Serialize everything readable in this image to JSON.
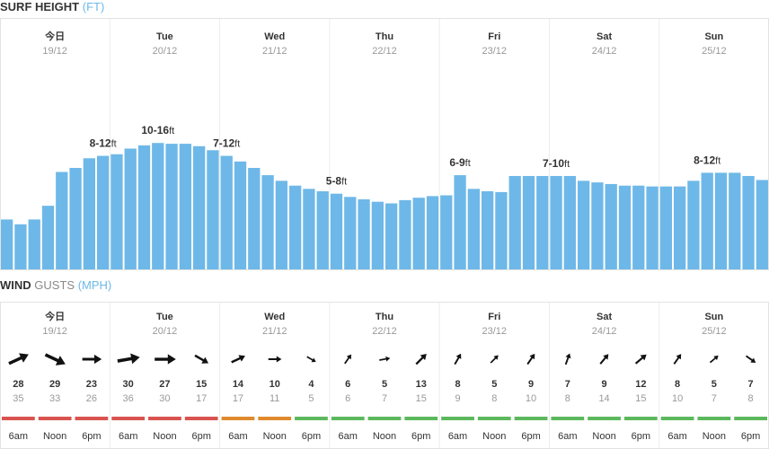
{
  "surf": {
    "title": "SURF HEIGHT",
    "unit": "(FT)",
    "ylim": [
      0,
      31
    ],
    "color": "#6db8e8",
    "days": [
      {
        "day": "今日",
        "date": "19/12",
        "range": "8-12",
        "unit": "ft"
      },
      {
        "day": "Tue",
        "date": "20/12",
        "range": "10-16",
        "unit": "ft"
      },
      {
        "day": "Wed",
        "date": "21/12",
        "range": "7-12",
        "unit": "ft"
      },
      {
        "day": "Thu",
        "date": "22/12",
        "range": "5-8",
        "unit": "ft"
      },
      {
        "day": "Fri",
        "date": "23/12",
        "range": "6-9",
        "unit": "ft"
      },
      {
        "day": "Sat",
        "date": "24/12",
        "range": "7-10",
        "unit": "ft"
      },
      {
        "day": "Sun",
        "date": "25/12",
        "range": "8-12",
        "unit": "ft"
      }
    ],
    "heights": [
      6.2,
      5.6,
      6.2,
      7.9,
      12.1,
      12.6,
      13.8,
      14.1,
      14.3,
      15,
      15.4,
      15.7,
      15.6,
      15.6,
      15.3,
      14.8,
      14.1,
      13.4,
      12.6,
      11.7,
      11,
      10.4,
      10,
      9.7,
      9.4,
      9,
      8.7,
      8.4,
      8.2,
      8.6,
      8.9,
      9.1,
      9.2,
      11.7,
      10,
      9.7,
      9.6,
      11.6,
      11.6,
      11.6,
      11.6,
      11.6,
      11,
      10.8,
      10.6,
      10.4,
      10.4,
      10.3,
      10.3,
      10.3,
      11,
      12,
      12,
      12,
      11.6,
      11.1
    ]
  },
  "wind": {
    "title": "WIND",
    "subtitle": "GUSTS",
    "unit": "(MPH)",
    "days": [
      {
        "day": "今日",
        "date": "19/12",
        "slots": [
          {
            "time": "6am",
            "speed": 28,
            "gust": 35,
            "direction": -25,
            "color": "#d9534f"
          },
          {
            "time": "Noon",
            "speed": 29,
            "gust": 33,
            "direction": 25,
            "color": "#d9534f"
          },
          {
            "time": "6pm",
            "speed": 23,
            "gust": 26,
            "direction": 0,
            "color": "#d9534f"
          }
        ]
      },
      {
        "day": "Tue",
        "date": "20/12",
        "slots": [
          {
            "time": "6am",
            "speed": 30,
            "gust": 36,
            "direction": -10,
            "color": "#d9534f"
          },
          {
            "time": "Noon",
            "speed": 27,
            "gust": 30,
            "direction": 0,
            "color": "#d9534f"
          },
          {
            "time": "6pm",
            "speed": 15,
            "gust": 17,
            "direction": 30,
            "color": "#d9534f"
          }
        ]
      },
      {
        "day": "Wed",
        "date": "21/12",
        "slots": [
          {
            "time": "6am",
            "speed": 14,
            "gust": 17,
            "direction": -25,
            "color": "#e08a2e"
          },
          {
            "time": "Noon",
            "speed": 10,
            "gust": 11,
            "direction": 0,
            "color": "#e08a2e"
          },
          {
            "time": "6pm",
            "speed": 4,
            "gust": 5,
            "direction": 30,
            "color": "#5cb85c"
          }
        ]
      },
      {
        "day": "Thu",
        "date": "22/12",
        "slots": [
          {
            "time": "6am",
            "speed": 6,
            "gust": 6,
            "direction": -55,
            "color": "#5cb85c"
          },
          {
            "time": "Noon",
            "speed": 5,
            "gust": 7,
            "direction": -10,
            "color": "#5cb85c"
          },
          {
            "time": "6pm",
            "speed": 13,
            "gust": 15,
            "direction": -45,
            "color": "#5cb85c"
          }
        ]
      },
      {
        "day": "Fri",
        "date": "23/12",
        "slots": [
          {
            "time": "6am",
            "speed": 8,
            "gust": 9,
            "direction": -60,
            "color": "#5cb85c"
          },
          {
            "time": "Noon",
            "speed": 5,
            "gust": 8,
            "direction": -45,
            "color": "#5cb85c"
          },
          {
            "time": "6pm",
            "speed": 9,
            "gust": 10,
            "direction": -55,
            "color": "#5cb85c"
          }
        ]
      },
      {
        "day": "Sat",
        "date": "24/12",
        "slots": [
          {
            "time": "6am",
            "speed": 7,
            "gust": 8,
            "direction": -70,
            "color": "#5cb85c"
          },
          {
            "time": "Noon",
            "speed": 9,
            "gust": 14,
            "direction": -50,
            "color": "#5cb85c"
          },
          {
            "time": "6pm",
            "speed": 12,
            "gust": 15,
            "direction": -40,
            "color": "#5cb85c"
          }
        ]
      },
      {
        "day": "Sun",
        "date": "25/12",
        "slots": [
          {
            "time": "6am",
            "speed": 8,
            "gust": 10,
            "direction": -55,
            "color": "#5cb85c"
          },
          {
            "time": "Noon",
            "speed": 5,
            "gust": 7,
            "direction": -40,
            "color": "#5cb85c"
          },
          {
            "time": "6pm",
            "speed": 7,
            "gust": 8,
            "direction": 35,
            "color": "#5cb85c"
          }
        ]
      }
    ]
  }
}
